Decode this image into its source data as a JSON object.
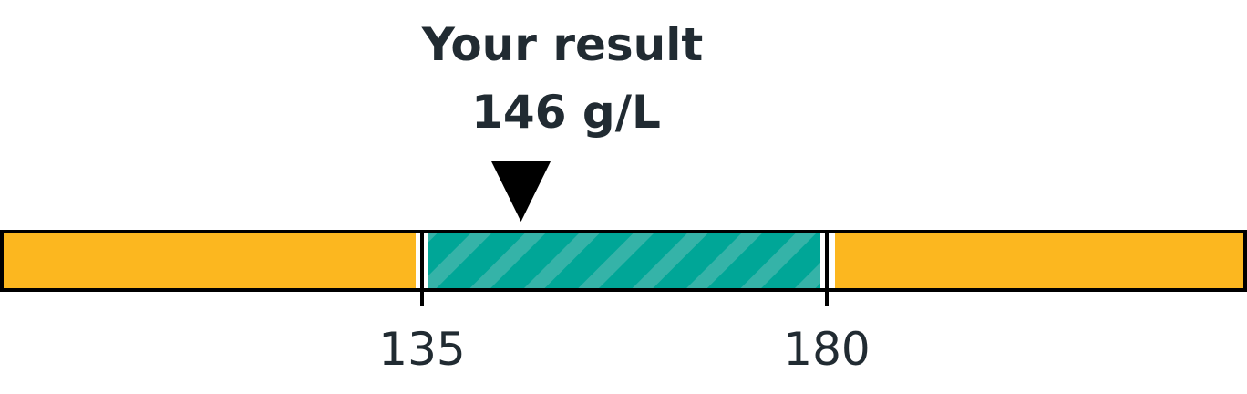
{
  "chart_data": {
    "type": "range-bar",
    "result_heading": "Your result",
    "result_value": 146,
    "result_unit": "g/L",
    "result_label": "146 g/L",
    "normal_range": {
      "low": 135,
      "high": 180
    },
    "tick_labels": [
      "135",
      "180"
    ],
    "colors": {
      "out_of_range": "#fcb71f",
      "normal_range": "#00a697",
      "normal_stripe": "#35b3a8",
      "outline": "#000000",
      "text": "#212b32"
    }
  }
}
